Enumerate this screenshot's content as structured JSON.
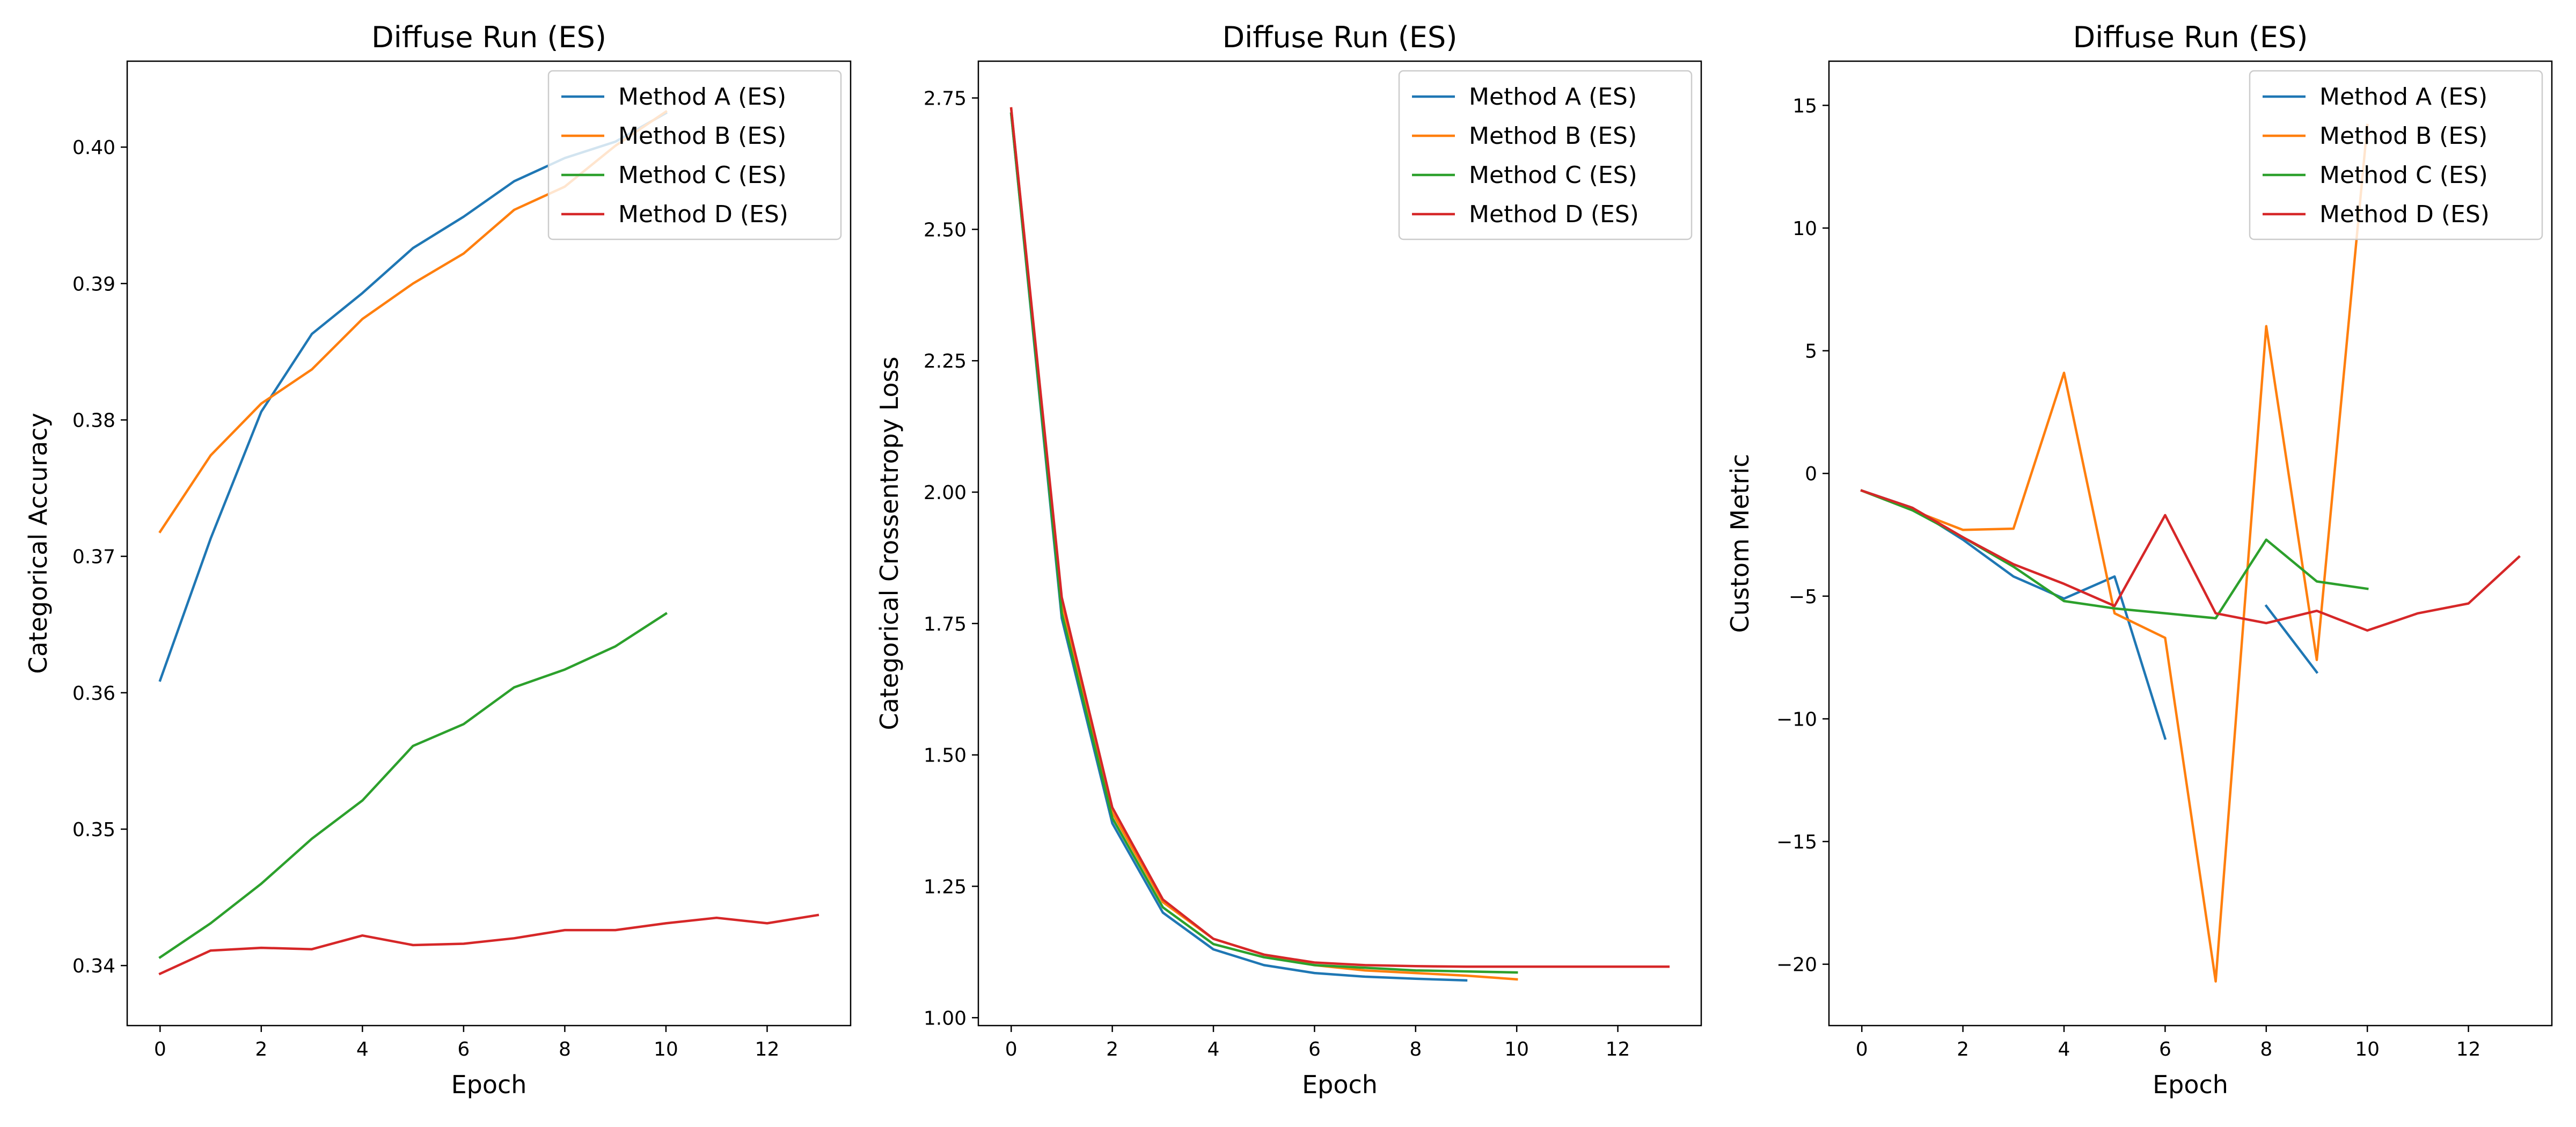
{
  "colors": {
    "Method A (ES)": "#1f77b4",
    "Method B (ES)": "#ff7f0e",
    "Method C (ES)": "#2ca02c",
    "Method D (ES)": "#d62728"
  },
  "chart_data": [
    {
      "type": "line",
      "title": "Diffuse Run (ES)",
      "xlabel": "Epoch",
      "ylabel": "Categorical Accuracy",
      "xlim": [
        -0.65,
        13.65
      ],
      "ylim": [
        0.3356,
        0.4063
      ],
      "xticks": [
        0,
        2,
        4,
        6,
        8,
        10,
        12
      ],
      "yticks": [
        0.34,
        0.35,
        0.36,
        0.37,
        0.38,
        0.39,
        0.4
      ],
      "ytick_labels": [
        "0.34",
        "0.35",
        "0.36",
        "0.37",
        "0.38",
        "0.39",
        "0.40"
      ],
      "legend": "top-right",
      "series": [
        {
          "name": "Method A (ES)",
          "x": [
            0,
            1,
            2,
            3,
            4,
            5,
            6,
            7,
            8,
            9,
            10
          ],
          "y": [
            0.3609,
            0.3713,
            0.3806,
            0.3863,
            0.3893,
            0.3926,
            0.3949,
            0.3975,
            0.3992,
            0.4004,
            0.4025
          ]
        },
        {
          "name": "Method B (ES)",
          "x": [
            0,
            1,
            2,
            3,
            4,
            5,
            6,
            7,
            8,
            9,
            10
          ],
          "y": [
            0.3718,
            0.3774,
            0.3812,
            0.3837,
            0.3874,
            0.39,
            0.3922,
            0.3954,
            0.3971,
            0.4001,
            0.4026
          ]
        },
        {
          "name": "Method C (ES)",
          "x": [
            0,
            1,
            2,
            3,
            4,
            5,
            6,
            7,
            8,
            9,
            10
          ],
          "y": [
            0.3406,
            0.3431,
            0.346,
            0.3493,
            0.3521,
            0.3561,
            0.3577,
            0.3604,
            0.3617,
            0.3634,
            0.3658
          ]
        },
        {
          "name": "Method D (ES)",
          "x": [
            0,
            1,
            2,
            3,
            4,
            5,
            6,
            7,
            8,
            9,
            10,
            11,
            12,
            13
          ],
          "y": [
            0.3394,
            0.3411,
            0.3413,
            0.3412,
            0.3422,
            0.3415,
            0.3416,
            0.342,
            0.3426,
            0.3426,
            0.3431,
            0.3435,
            0.3431,
            0.3437
          ]
        }
      ]
    },
    {
      "type": "line",
      "title": "Diffuse Run (ES)",
      "xlabel": "Epoch",
      "ylabel": "Categorical Crossentropy Loss",
      "xlim": [
        -0.65,
        13.65
      ],
      "ylim": [
        0.985,
        2.82
      ],
      "xticks": [
        0,
        2,
        4,
        6,
        8,
        10,
        12
      ],
      "yticks": [
        1.0,
        1.25,
        1.5,
        1.75,
        2.0,
        2.25,
        2.5,
        2.75
      ],
      "ytick_labels": [
        "1.00",
        "1.25",
        "1.50",
        "1.75",
        "2.00",
        "2.25",
        "2.50",
        "2.75"
      ],
      "legend": "top-right",
      "series": [
        {
          "name": "Method A (ES)",
          "x": [
            0,
            1,
            2,
            3,
            4,
            5,
            6,
            7,
            8,
            9
          ],
          "y": [
            2.72,
            1.76,
            1.37,
            1.2,
            1.13,
            1.1,
            1.085,
            1.078,
            1.074,
            1.071
          ]
        },
        {
          "name": "Method B (ES)",
          "x": [
            0,
            1,
            2,
            3,
            4,
            5,
            6,
            7,
            8,
            9,
            10
          ],
          "y": [
            2.73,
            1.79,
            1.39,
            1.22,
            1.15,
            1.12,
            1.1,
            1.09,
            1.085,
            1.08,
            1.073
          ]
        },
        {
          "name": "Method C (ES)",
          "x": [
            0,
            1,
            2,
            3,
            4,
            5,
            6,
            7,
            8,
            9,
            10
          ],
          "y": [
            2.72,
            1.77,
            1.38,
            1.21,
            1.14,
            1.115,
            1.1,
            1.095,
            1.09,
            1.088,
            1.086
          ]
        },
        {
          "name": "Method D (ES)",
          "x": [
            0,
            1,
            2,
            3,
            4,
            5,
            6,
            7,
            8,
            9,
            10,
            11,
            12,
            13
          ],
          "y": [
            2.73,
            1.8,
            1.4,
            1.225,
            1.15,
            1.12,
            1.105,
            1.1,
            1.098,
            1.097,
            1.097,
            1.097,
            1.097,
            1.097
          ]
        }
      ]
    },
    {
      "type": "line",
      "title": "Diffuse Run (ES)",
      "xlabel": "Epoch",
      "ylabel": "Custom Metric",
      "xlim": [
        -0.65,
        13.65
      ],
      "ylim": [
        -22.5,
        16.8
      ],
      "xticks": [
        0,
        2,
        4,
        6,
        8,
        10,
        12
      ],
      "yticks": [
        -20,
        -15,
        -10,
        -5,
        0,
        5,
        10,
        15
      ],
      "ytick_labels": [
        "−20",
        "−15",
        "−10",
        "−5",
        "0",
        "5",
        "10",
        "15"
      ],
      "legend": "top-right",
      "series": [
        {
          "name": "Method A (ES)",
          "x": [
            0,
            1,
            2,
            3,
            4,
            5,
            6,
            null,
            8,
            9
          ],
          "y": [
            -0.7,
            -1.4,
            -2.7,
            -4.2,
            -5.1,
            -4.2,
            -10.8,
            null,
            -5.4,
            -8.1
          ]
        },
        {
          "name": "Method B (ES)",
          "x": [
            0,
            1,
            2,
            3,
            4,
            5,
            6,
            7,
            8,
            9,
            10
          ],
          "y": [
            -0.7,
            -1.5,
            -2.3,
            -2.25,
            4.1,
            -5.7,
            -6.7,
            -20.7,
            6.0,
            -7.6,
            14.2
          ]
        },
        {
          "name": "Method C (ES)",
          "x": [
            0,
            1,
            2,
            3,
            4,
            5,
            6,
            7,
            8,
            9,
            10
          ],
          "y": [
            -0.7,
            -1.5,
            -2.6,
            -3.8,
            -5.2,
            -5.5,
            -5.7,
            -5.9,
            -2.7,
            -4.4,
            -4.7
          ]
        },
        {
          "name": "Method D (ES)",
          "x": [
            0,
            1,
            2,
            3,
            4,
            5,
            6,
            7,
            8,
            9,
            10,
            11,
            12,
            13
          ],
          "y": [
            -0.7,
            -1.4,
            -2.6,
            -3.7,
            -4.5,
            -5.4,
            -1.7,
            -5.7,
            -6.1,
            -5.6,
            -6.4,
            -5.7,
            -5.3,
            -3.4
          ]
        }
      ]
    }
  ]
}
